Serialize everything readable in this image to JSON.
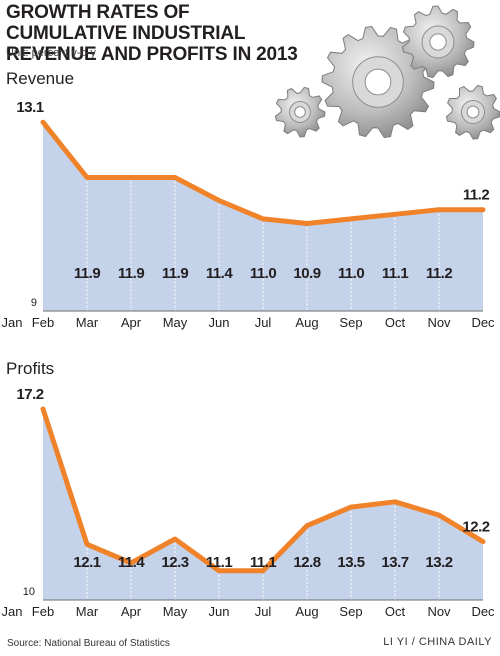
{
  "title": "GROWTH RATES OF CUMULATIVE INDUSTRIAL REVENUE AND PROFITS IN 2013",
  "unit": "Unit: percent y-o-y",
  "source": "Source: National Bureau of Statistics",
  "credit": "LI YI / CHINA DAILY",
  "colors": {
    "fill": "#c5d3ea",
    "line": "#f0832a",
    "text": "#231f20"
  },
  "decoration": "gears-illustration",
  "chart_data": [
    {
      "type": "area",
      "title": "Revenue",
      "categories": [
        "Jan",
        "Feb",
        "Mar",
        "Apr",
        "May",
        "Jun",
        "Jul",
        "Aug",
        "Sep",
        "Oct",
        "Nov",
        "Dec"
      ],
      "x": [
        "Feb",
        "Mar",
        "Apr",
        "May",
        "Jun",
        "Jul",
        "Aug",
        "Sep",
        "Oct",
        "Nov",
        "Dec"
      ],
      "values": [
        13.1,
        11.9,
        11.9,
        11.9,
        11.4,
        11.0,
        10.9,
        11.0,
        11.1,
        11.2,
        11.2
      ],
      "value_labels": [
        "13.1",
        "11.9",
        "11.9",
        "11.9",
        "11.4",
        "11.0",
        "10.9",
        "11.0",
        "11.1",
        "11.2",
        "11.2"
      ],
      "ymin_label": "9",
      "ylim": [
        9,
        13.3
      ]
    },
    {
      "type": "area",
      "title": "Profits",
      "categories": [
        "Jan",
        "Feb",
        "Mar",
        "Apr",
        "May",
        "Jun",
        "Jul",
        "Aug",
        "Sep",
        "Oct",
        "Nov",
        "Dec"
      ],
      "x": [
        "Feb",
        "Mar",
        "Apr",
        "May",
        "Jun",
        "Jul",
        "Aug",
        "Sep",
        "Oct",
        "Nov",
        "Dec"
      ],
      "values": [
        17.2,
        12.1,
        11.4,
        12.3,
        11.1,
        11.1,
        12.8,
        13.5,
        13.7,
        13.2,
        12.2
      ],
      "value_labels": [
        "17.2",
        "12.1",
        "11.4",
        "12.3",
        "11.1",
        "11.1",
        "12.8",
        "13.5",
        "13.7",
        "13.2",
        "12.2"
      ],
      "ymin_label": "10",
      "ylim": [
        10,
        17.5
      ]
    }
  ]
}
